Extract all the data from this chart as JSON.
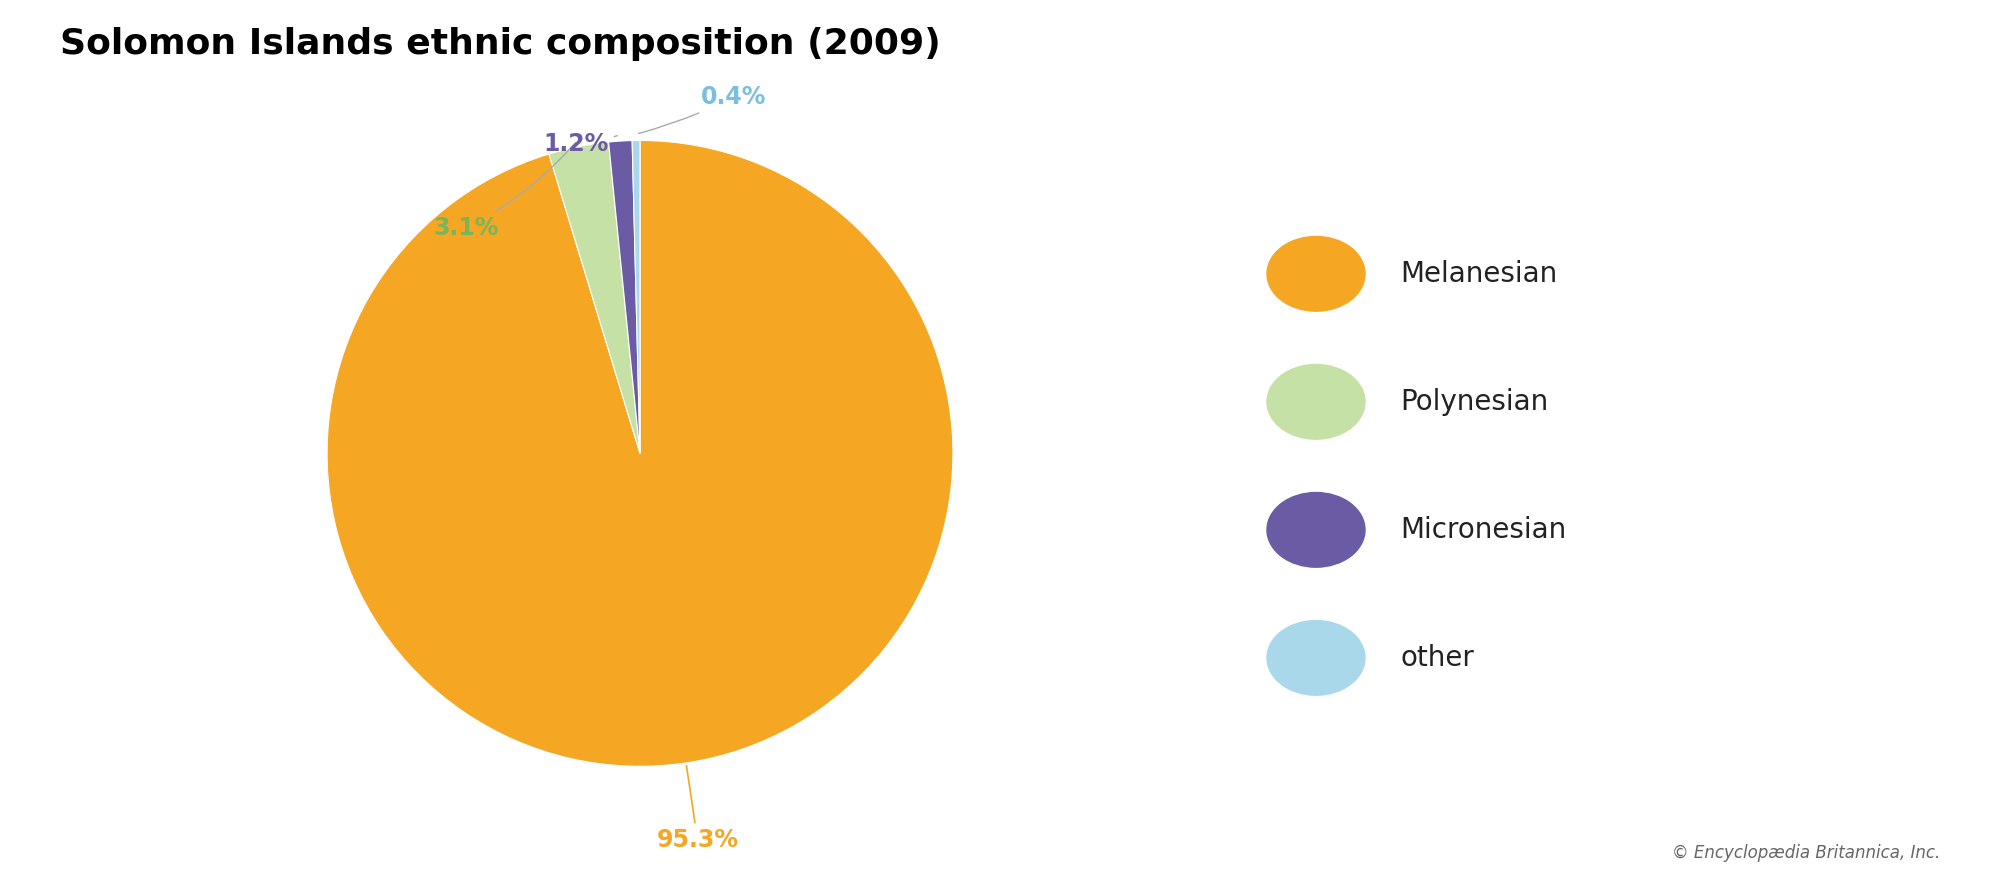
{
  "title": "Solomon Islands ethnic composition (2009)",
  "labels": [
    "Melanesian",
    "Polynesian",
    "Micronesian",
    "other"
  ],
  "values": [
    95.3,
    3.1,
    1.2,
    0.4
  ],
  "colors": [
    "#F5A623",
    "#C5E1A5",
    "#6B5BA5",
    "#A8D8EA"
  ],
  "pct_labels": [
    "95.3%",
    "3.1%",
    "1.2%",
    "0.4%"
  ],
  "pct_colors": [
    "#F5A623",
    "#7ab55c",
    "#6B5BA5",
    "#7abfe0"
  ],
  "legend_labels": [
    "Melanesian",
    "Polynesian",
    "Micronesian",
    "other"
  ],
  "legend_colors": [
    "#F5A623",
    "#C5E1A5",
    "#6B5BA5",
    "#A8D8EA"
  ],
  "title_fontsize": 26,
  "label_fontsize": 17,
  "legend_fontsize": 20,
  "copyright_text": "© Encyclopædia Britannica, Inc.",
  "background_color": "#ffffff",
  "startangle": 90
}
